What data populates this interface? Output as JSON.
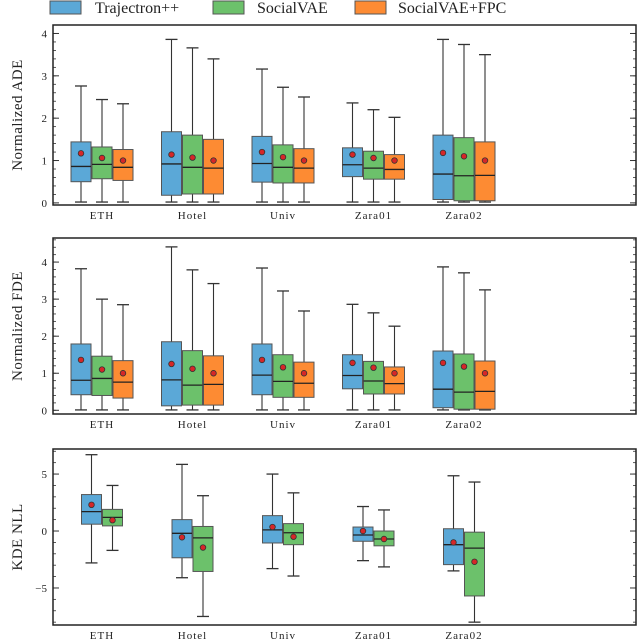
{
  "legend": [
    {
      "name": "Trajectron++",
      "color": "#5ba8d7"
    },
    {
      "name": "SocialVAE",
      "color": "#6cc16b"
    },
    {
      "name": "SocialVAE+FPC",
      "color": "#fd8b33"
    }
  ],
  "mean_marker_color": "#d62728",
  "chart_data": [
    {
      "type": "box",
      "ylabel": "Normalized ADE",
      "categories": [
        "ETH",
        "Hotel",
        "Univ",
        "Zara01",
        "Zara02"
      ],
      "yticks": [
        0,
        1,
        2,
        3,
        4
      ],
      "ylim": [
        -0.05,
        4.2
      ],
      "series": [
        {
          "name": "Trajectron++",
          "boxes": [
            {
              "low": 0.02,
              "q1": 0.5,
              "median": 0.86,
              "q3": 1.44,
              "high": 2.76,
              "mean": 1.17
            },
            {
              "low": 0.02,
              "q1": 0.18,
              "median": 0.92,
              "q3": 1.68,
              "high": 3.86,
              "mean": 1.14
            },
            {
              "low": 0.02,
              "q1": 0.49,
              "median": 0.93,
              "q3": 1.57,
              "high": 3.16,
              "mean": 1.2
            },
            {
              "low": 0.02,
              "q1": 0.62,
              "median": 0.9,
              "q3": 1.3,
              "high": 2.36,
              "mean": 1.14
            },
            {
              "low": 0.02,
              "q1": 0.08,
              "median": 0.68,
              "q3": 1.6,
              "high": 3.86,
              "mean": 1.18
            }
          ]
        },
        {
          "name": "SocialVAE",
          "boxes": [
            {
              "low": 0.02,
              "q1": 0.57,
              "median": 0.91,
              "q3": 1.32,
              "high": 2.44,
              "mean": 1.06
            },
            {
              "low": 0.02,
              "q1": 0.21,
              "median": 0.84,
              "q3": 1.6,
              "high": 3.66,
              "mean": 1.07
            },
            {
              "low": 0.02,
              "q1": 0.47,
              "median": 0.84,
              "q3": 1.37,
              "high": 2.73,
              "mean": 1.08
            },
            {
              "low": 0.02,
              "q1": 0.56,
              "median": 0.82,
              "q3": 1.22,
              "high": 2.2,
              "mean": 1.06
            },
            {
              "low": 0.02,
              "q1": 0.05,
              "median": 0.64,
              "q3": 1.54,
              "high": 3.74,
              "mean": 1.1
            }
          ]
        },
        {
          "name": "SocialVAE+FPC",
          "boxes": [
            {
              "low": 0.02,
              "q1": 0.53,
              "median": 0.84,
              "q3": 1.26,
              "high": 2.34,
              "mean": 1.0
            },
            {
              "low": 0.02,
              "q1": 0.21,
              "median": 0.82,
              "q3": 1.5,
              "high": 3.4,
              "mean": 1.0
            },
            {
              "low": 0.02,
              "q1": 0.47,
              "median": 0.82,
              "q3": 1.28,
              "high": 2.5,
              "mean": 1.0
            },
            {
              "low": 0.02,
              "q1": 0.56,
              "median": 0.79,
              "q3": 1.14,
              "high": 2.02,
              "mean": 1.0
            },
            {
              "low": 0.02,
              "q1": 0.05,
              "median": 0.65,
              "q3": 1.44,
              "high": 3.5,
              "mean": 1.0
            }
          ]
        }
      ]
    },
    {
      "type": "box",
      "ylabel": "Normalized FDE",
      "categories": [
        "ETH",
        "Hotel",
        "Univ",
        "Zara01",
        "Zara02"
      ],
      "yticks": [
        0,
        1,
        2,
        3,
        4
      ],
      "ylim": [
        -0.1,
        4.65
      ],
      "series": [
        {
          "name": "Trajectron++",
          "boxes": [
            {
              "low": 0.01,
              "q1": 0.42,
              "median": 0.81,
              "q3": 1.79,
              "high": 3.82,
              "mean": 1.36
            },
            {
              "low": 0.01,
              "q1": 0.12,
              "median": 0.82,
              "q3": 1.85,
              "high": 4.41,
              "mean": 1.25
            },
            {
              "low": 0.01,
              "q1": 0.42,
              "median": 0.95,
              "q3": 1.79,
              "high": 3.84,
              "mean": 1.36
            },
            {
              "low": 0.01,
              "q1": 0.58,
              "median": 0.94,
              "q3": 1.5,
              "high": 2.86,
              "mean": 1.28
            },
            {
              "low": 0.01,
              "q1": 0.07,
              "median": 0.57,
              "q3": 1.6,
              "high": 3.87,
              "mean": 1.28
            }
          ]
        },
        {
          "name": "SocialVAE",
          "boxes": [
            {
              "low": 0.01,
              "q1": 0.4,
              "median": 0.86,
              "q3": 1.46,
              "high": 3.0,
              "mean": 1.1
            },
            {
              "low": 0.01,
              "q1": 0.14,
              "median": 0.68,
              "q3": 1.61,
              "high": 3.79,
              "mean": 1.12
            },
            {
              "low": 0.01,
              "q1": 0.35,
              "median": 0.78,
              "q3": 1.5,
              "high": 3.22,
              "mean": 1.16
            },
            {
              "low": 0.01,
              "q1": 0.44,
              "median": 0.79,
              "q3": 1.32,
              "high": 2.63,
              "mean": 1.15
            },
            {
              "low": 0.01,
              "q1": 0.03,
              "median": 0.49,
              "q3": 1.52,
              "high": 3.71,
              "mean": 1.18
            }
          ]
        },
        {
          "name": "SocialVAE+FPC",
          "boxes": [
            {
              "low": 0.01,
              "q1": 0.33,
              "median": 0.76,
              "q3": 1.34,
              "high": 2.85,
              "mean": 1.0
            },
            {
              "low": 0.01,
              "q1": 0.14,
              "median": 0.7,
              "q3": 1.47,
              "high": 3.42,
              "mean": 1.0
            },
            {
              "low": 0.01,
              "q1": 0.35,
              "median": 0.73,
              "q3": 1.3,
              "high": 2.68,
              "mean": 1.0
            },
            {
              "low": 0.01,
              "q1": 0.44,
              "median": 0.72,
              "q3": 1.17,
              "high": 2.27,
              "mean": 1.0
            },
            {
              "low": 0.01,
              "q1": 0.03,
              "median": 0.51,
              "q3": 1.33,
              "high": 3.25,
              "mean": 1.0
            }
          ]
        }
      ]
    },
    {
      "type": "box",
      "ylabel": "KDE NLL",
      "categories": [
        "ETH",
        "Hotel",
        "Univ",
        "Zara01",
        "Zara02"
      ],
      "yticks": [
        -5,
        0,
        5
      ],
      "ylim": [
        -8.25,
        7.2
      ],
      "series": [
        {
          "name": "Trajectron++",
          "boxes": [
            {
              "low": -2.8,
              "q1": 0.6,
              "median": 1.7,
              "q3": 3.2,
              "high": 6.7,
              "mean": 2.3
            },
            {
              "low": -4.1,
              "q1": -2.35,
              "median": -0.2,
              "q3": 1.0,
              "high": 5.85,
              "mean": -0.55
            },
            {
              "low": -3.3,
              "q1": -1.05,
              "median": 0.1,
              "q3": 1.35,
              "high": 5.0,
              "mean": 0.35
            },
            {
              "low": -2.6,
              "q1": -0.9,
              "median": -0.35,
              "q3": 0.35,
              "high": 2.15,
              "mean": 0.0
            },
            {
              "low": -3.5,
              "q1": -2.95,
              "median": -1.2,
              "q3": 0.2,
              "high": 4.85,
              "mean": -1.0
            }
          ]
        },
        {
          "name": "SocialVAE",
          "boxes": [
            {
              "low": -1.7,
              "q1": 0.45,
              "median": 1.2,
              "q3": 1.9,
              "high": 4.0,
              "mean": 0.95
            },
            {
              "low": -7.5,
              "q1": -3.55,
              "median": -0.6,
              "q3": 0.4,
              "high": 3.1,
              "mean": -1.45
            },
            {
              "low": -3.95,
              "q1": -1.2,
              "median": -0.15,
              "q3": 0.65,
              "high": 3.35,
              "mean": -0.5
            },
            {
              "low": -3.15,
              "q1": -1.3,
              "median": -0.7,
              "q3": 0.0,
              "high": 1.85,
              "mean": -0.7
            },
            {
              "low": -8.0,
              "q1": -5.7,
              "median": -1.5,
              "q3": -0.1,
              "high": 4.3,
              "mean": -2.7
            }
          ]
        }
      ]
    }
  ]
}
